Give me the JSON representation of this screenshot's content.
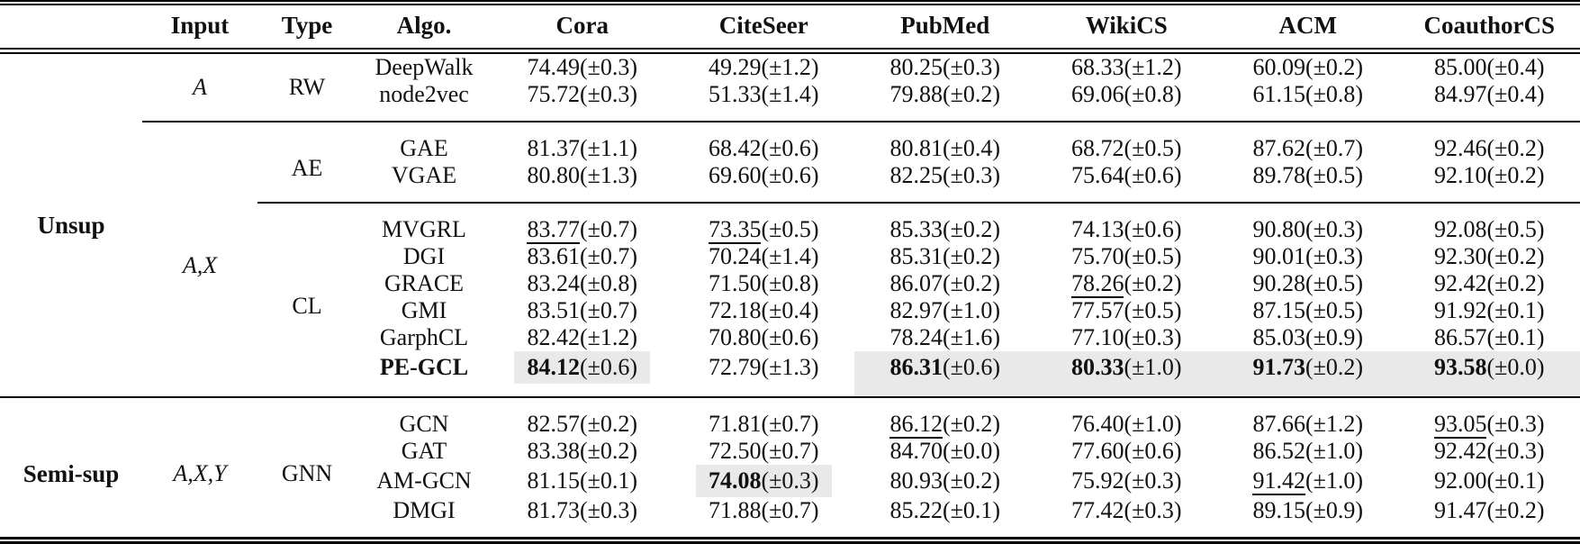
{
  "page": {
    "background": "#ffffff",
    "text_color": "#111111",
    "highlight_color": "#e9e9e9"
  },
  "table": {
    "headers": [
      "",
      "Input",
      "Type",
      "Algo.",
      "Cora",
      "CiteSeer",
      "PubMed",
      "WikiCS",
      "ACM",
      "CoauthorCS"
    ],
    "rows": [
      {
        "algo": "DeepWalk",
        "group": {
          "label": "Unsup",
          "span": 10
        },
        "input": {
          "label": "A",
          "span": 2
        },
        "type": {
          "label": "RW",
          "span": 2
        },
        "cells": [
          {
            "v": "74.49",
            "s": "(±0.3)"
          },
          {
            "v": "49.29",
            "s": "(±1.2)"
          },
          {
            "v": "80.25",
            "s": "(±0.3)"
          },
          {
            "v": "68.33",
            "s": "(±1.2)"
          },
          {
            "v": "60.09",
            "s": "(±0.2)"
          },
          {
            "v": "85.00",
            "s": "(±0.4)"
          }
        ]
      },
      {
        "algo": "node2vec",
        "pb": true,
        "cells": [
          {
            "v": "75.72",
            "s": "(±0.3)"
          },
          {
            "v": "51.33",
            "s": "(±1.4)"
          },
          {
            "v": "79.88",
            "s": "(±0.2)"
          },
          {
            "v": "69.06",
            "s": "(±0.8)"
          },
          {
            "v": "61.15",
            "s": "(±0.8)"
          },
          {
            "v": "84.97",
            "s": "(±0.4)"
          }
        ]
      },
      {
        "algo": "GAE",
        "rule": "input",
        "input": {
          "label": "A,X",
          "span": 8
        },
        "type": {
          "label": "AE",
          "span": 2
        },
        "cells": [
          {
            "v": "81.37",
            "s": "(±1.1)"
          },
          {
            "v": "68.42",
            "s": "(±0.6)"
          },
          {
            "v": "80.81",
            "s": "(±0.4)"
          },
          {
            "v": "68.72",
            "s": "(±0.5)"
          },
          {
            "v": "87.62",
            "s": "(±0.7)"
          },
          {
            "v": "92.46",
            "s": "(±0.2)"
          }
        ]
      },
      {
        "algo": "VGAE",
        "pb": true,
        "cells": [
          {
            "v": "80.80",
            "s": "(±1.3)"
          },
          {
            "v": "69.60",
            "s": "(±0.6)"
          },
          {
            "v": "82.25",
            "s": "(±0.3)"
          },
          {
            "v": "75.64",
            "s": "(±0.6)"
          },
          {
            "v": "89.78",
            "s": "(±0.5)"
          },
          {
            "v": "92.10",
            "s": "(±0.2)"
          }
        ]
      },
      {
        "algo": "MVGRL",
        "rule": "type",
        "type": {
          "label": "CL",
          "span": 6
        },
        "cells": [
          {
            "v": "83.77",
            "s": "(±0.7)",
            "u": true
          },
          {
            "v": "73.35",
            "s": "(±0.5)",
            "u": true
          },
          {
            "v": "85.33",
            "s": "(±0.2)"
          },
          {
            "v": "74.13",
            "s": "(±0.6)"
          },
          {
            "v": "90.80",
            "s": "(±0.3)"
          },
          {
            "v": "92.08",
            "s": "(±0.5)"
          }
        ]
      },
      {
        "algo": "DGI",
        "cells": [
          {
            "v": "83.61",
            "s": "(±0.7)"
          },
          {
            "v": "70.24",
            "s": "(±1.4)"
          },
          {
            "v": "85.31",
            "s": "(±0.2)"
          },
          {
            "v": "75.70",
            "s": "(±0.5)"
          },
          {
            "v": "90.01",
            "s": "(±0.3)"
          },
          {
            "v": "92.30",
            "s": "(±0.2)"
          }
        ]
      },
      {
        "algo": "GRACE",
        "cells": [
          {
            "v": "83.24",
            "s": "(±0.8)"
          },
          {
            "v": "71.50",
            "s": "(±0.8)"
          },
          {
            "v": "86.07",
            "s": "(±0.2)"
          },
          {
            "v": "78.26",
            "s": "(±0.2)",
            "u": true
          },
          {
            "v": "90.28",
            "s": "(±0.5)"
          },
          {
            "v": "92.42",
            "s": "(±0.2)"
          }
        ]
      },
      {
        "algo": "GMI",
        "cells": [
          {
            "v": "83.51",
            "s": "(±0.7)"
          },
          {
            "v": "72.18",
            "s": "(±0.4)"
          },
          {
            "v": "82.97",
            "s": "(±1.0)"
          },
          {
            "v": "77.57",
            "s": "(±0.5)"
          },
          {
            "v": "87.15",
            "s": "(±0.5)"
          },
          {
            "v": "91.92",
            "s": "(±0.1)"
          }
        ]
      },
      {
        "algo": "GarphCL",
        "cells": [
          {
            "v": "82.42",
            "s": "(±1.2)"
          },
          {
            "v": "70.80",
            "s": "(±0.6)"
          },
          {
            "v": "78.24",
            "s": "(±1.6)"
          },
          {
            "v": "77.10",
            "s": "(±0.3)"
          },
          {
            "v": "85.03",
            "s": "(±0.9)"
          },
          {
            "v": "86.57",
            "s": "(±0.1)"
          }
        ]
      },
      {
        "algo": "PE-GCL",
        "algo_bold": true,
        "pb": true,
        "cells": [
          {
            "v": "84.12",
            "s": "(±0.6)",
            "b": true,
            "hl": "box"
          },
          {
            "v": "72.79",
            "s": "(±1.3)"
          },
          {
            "v": "86.31",
            "s": "(±0.6)",
            "b": true,
            "hl": "band"
          },
          {
            "v": "80.33",
            "s": "(±1.0)",
            "b": true,
            "hl": "band"
          },
          {
            "v": "91.73",
            "s": "(±0.2)",
            "b": true,
            "hl": "band"
          },
          {
            "v": "93.58",
            "s": "(±0.0)",
            "b": true,
            "hl": "band"
          }
        ]
      },
      {
        "algo": "GCN",
        "rule": "full",
        "group": {
          "label": "Semi-sup",
          "span": 4
        },
        "input": {
          "label": "A,X,Y",
          "span": 4
        },
        "type": {
          "label": "GNN",
          "span": 4
        },
        "cells": [
          {
            "v": "82.57",
            "s": "(±0.2)"
          },
          {
            "v": "71.81",
            "s": "(±0.7)"
          },
          {
            "v": "86.12",
            "s": "(±0.2)",
            "u": true
          },
          {
            "v": "76.40",
            "s": "(±1.0)"
          },
          {
            "v": "87.66",
            "s": "(±1.2)"
          },
          {
            "v": "93.05",
            "s": "(±0.3)",
            "u": true
          }
        ]
      },
      {
        "algo": "GAT",
        "cells": [
          {
            "v": "83.38",
            "s": "(±0.2)"
          },
          {
            "v": "72.50",
            "s": "(±0.7)"
          },
          {
            "v": "84.70",
            "s": "(±0.0)"
          },
          {
            "v": "77.60",
            "s": "(±0.6)"
          },
          {
            "v": "86.52",
            "s": "(±1.0)"
          },
          {
            "v": "92.42",
            "s": "(±0.3)"
          }
        ]
      },
      {
        "algo": "AM-GCN",
        "cells": [
          {
            "v": "81.15",
            "s": "(±0.1)"
          },
          {
            "v": "74.08",
            "s": "(±0.3)",
            "b": true,
            "hl": "box"
          },
          {
            "v": "80.93",
            "s": "(±0.2)"
          },
          {
            "v": "75.92",
            "s": "(±0.3)"
          },
          {
            "v": "91.42",
            "s": "(±1.0)",
            "u": true
          },
          {
            "v": "92.00",
            "s": "(±0.1)"
          }
        ]
      },
      {
        "algo": "DMGI",
        "pb": true,
        "cells": [
          {
            "v": "81.73",
            "s": "(±0.3)"
          },
          {
            "v": "71.88",
            "s": "(±0.7)"
          },
          {
            "v": "85.22",
            "s": "(±0.1)"
          },
          {
            "v": "77.42",
            "s": "(±0.3)"
          },
          {
            "v": "89.15",
            "s": "(±0.9)"
          },
          {
            "v": "91.47",
            "s": "(±0.2)"
          }
        ]
      }
    ]
  }
}
